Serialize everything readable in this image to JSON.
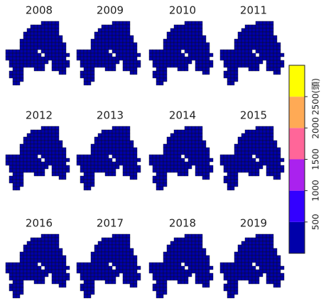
{
  "chart_data": {
    "type": "grid-map",
    "panels": [
      {
        "title": "2008"
      },
      {
        "title": "2009"
      },
      {
        "title": "2010"
      },
      {
        "title": "2011"
      },
      {
        "title": "2012"
      },
      {
        "title": "2013"
      },
      {
        "title": "2014"
      },
      {
        "title": "2015"
      },
      {
        "title": "2016"
      },
      {
        "title": "2017"
      },
      {
        "title": "2018"
      },
      {
        "title": "2019"
      }
    ],
    "colorbar": {
      "ylim": [
        0,
        3000
      ],
      "yticks": [
        500,
        1000,
        1500,
        2000,
        {
          "value": 2500,
          "label": "2500(頭)"
        }
      ],
      "colors": [
        "#0000aa",
        "#3300ff",
        "#aa22ee",
        "#ff6699",
        "#ffaa55",
        "#ffff00"
      ]
    }
  }
}
